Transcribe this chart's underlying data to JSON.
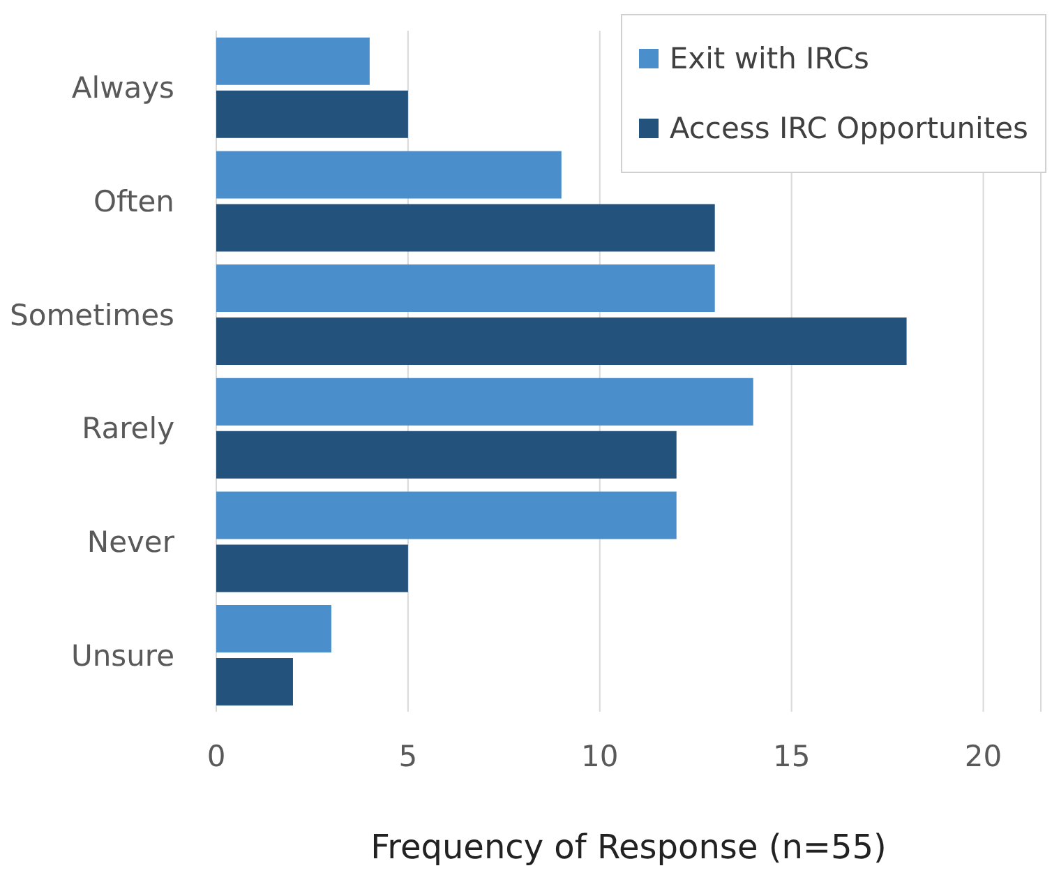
{
  "chart_data": {
    "type": "bar",
    "orientation": "horizontal",
    "categories": [
      "Always",
      "Often",
      "Sometimes",
      "Rarely",
      "Never",
      "Unsure"
    ],
    "series": [
      {
        "name": "Exit with IRCs",
        "color": "#4a8fcb",
        "values": [
          4,
          9,
          13,
          14,
          12,
          3
        ]
      },
      {
        "name": "Access IRC Opportunites",
        "color": "#23527c",
        "values": [
          5,
          13,
          18,
          12,
          5,
          2
        ]
      }
    ],
    "xlabel": "Frequency of Response (n=55)",
    "xlim": [
      0,
      21.5
    ],
    "xticks": [
      0,
      5,
      10,
      15,
      20
    ],
    "grid": "x",
    "legend": "top right"
  }
}
